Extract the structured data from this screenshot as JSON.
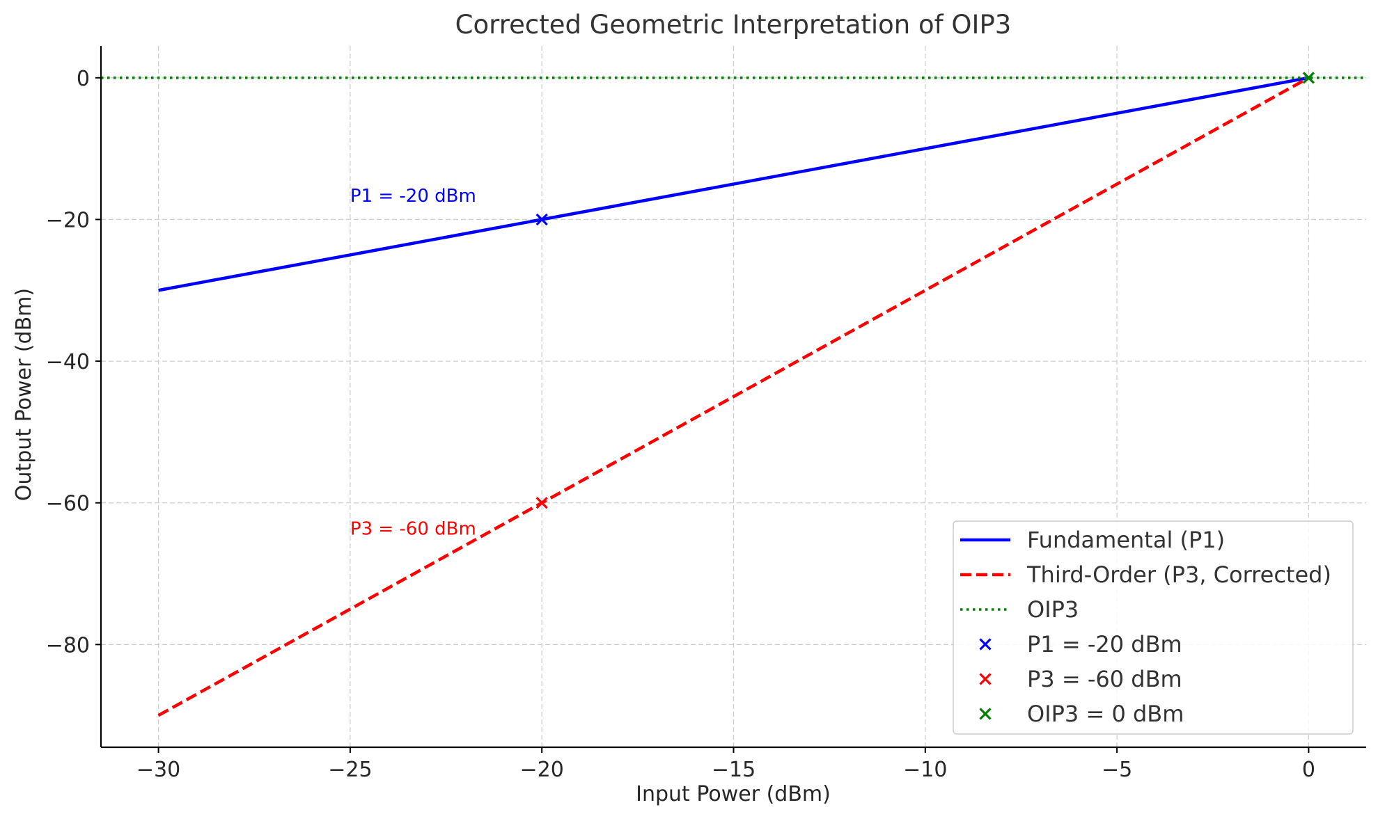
{
  "chart_data": {
    "type": "line",
    "title": "Corrected Geometric Interpretation of OIP3",
    "xlabel": "Input Power (dBm)",
    "ylabel": "Output Power (dBm)",
    "xlim": [
      -31.5,
      1.5
    ],
    "ylim": [
      -94.5,
      4.5
    ],
    "x_ticks": [
      -30,
      -25,
      -20,
      -15,
      -10,
      -5,
      0
    ],
    "x_tick_labels": [
      "−30",
      "−25",
      "−20",
      "−15",
      "−10",
      "−5",
      "0"
    ],
    "y_ticks": [
      0,
      -20,
      -40,
      -60,
      -80
    ],
    "y_tick_labels": [
      "0",
      "−20",
      "−40",
      "−60",
      "−80"
    ],
    "grid": true,
    "legend_position": "lower-right",
    "series": [
      {
        "name": "Fundamental (P1)",
        "style": "solid",
        "color": "#0000ff",
        "x": [
          -30,
          0
        ],
        "y": [
          -30,
          0
        ]
      },
      {
        "name": "Third-Order (P3, Corrected)",
        "style": "dashed",
        "color": "#ff0000",
        "x": [
          -30,
          0
        ],
        "y": [
          -90,
          0
        ]
      }
    ],
    "hlines": [
      {
        "name": "OIP3",
        "style": "dotted",
        "color": "#008000",
        "y": 0
      }
    ],
    "points": [
      {
        "name": "P1 = -20 dBm",
        "marker": "x",
        "color": "#0000ff",
        "x": -20,
        "y": -20
      },
      {
        "name": "P3 = -60 dBm",
        "marker": "x",
        "color": "#ff0000",
        "x": -20,
        "y": -60
      },
      {
        "name": "OIP3 = 0 dBm",
        "marker": "x",
        "color": "#008000",
        "x": 0,
        "y": 0
      }
    ],
    "annotations": [
      {
        "text": "P1 = -20 dBm",
        "color": "#0000ff",
        "x": -25,
        "y": -17.5
      },
      {
        "text": "P3 = -60 dBm",
        "color": "#ff0000",
        "x": -25,
        "y": -64.5
      }
    ],
    "legend": [
      {
        "label": "Fundamental (P1)",
        "kind": "line",
        "style": "solid",
        "color": "#0000ff"
      },
      {
        "label": "Third-Order (P3, Corrected)",
        "kind": "line",
        "style": "dashed",
        "color": "#ff0000"
      },
      {
        "label": "OIP3",
        "kind": "line",
        "style": "dotted",
        "color": "#008000"
      },
      {
        "label": "P1 = -20 dBm",
        "kind": "marker",
        "color": "#0000ff"
      },
      {
        "label": "P3 = -60 dBm",
        "kind": "marker",
        "color": "#ff0000"
      },
      {
        "label": "OIP3 = 0 dBm",
        "kind": "marker",
        "color": "#008000"
      }
    ]
  }
}
